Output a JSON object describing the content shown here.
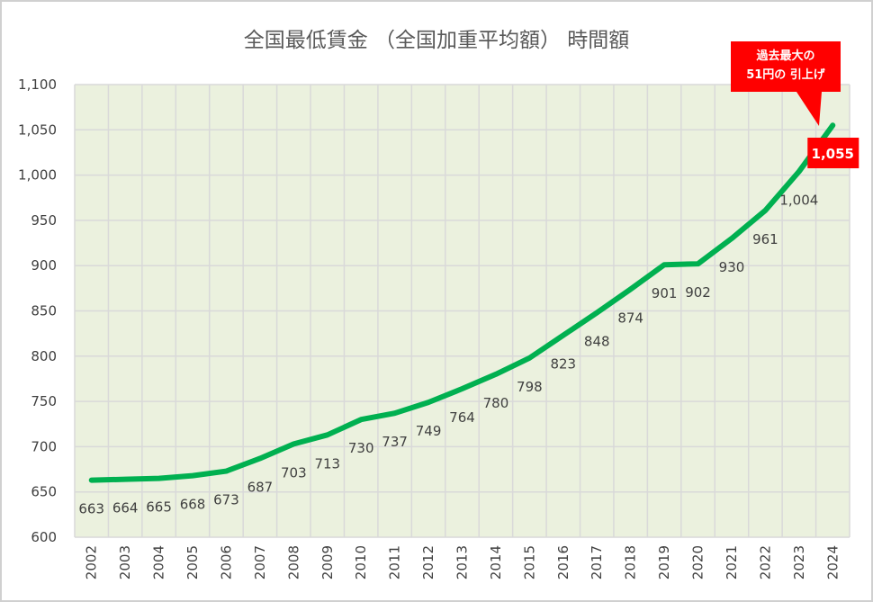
{
  "chart_data": {
    "type": "line",
    "title": "全国最低賃金 （全国加重平均額） 時間額",
    "categories": [
      "2002",
      "2003",
      "2004",
      "2005",
      "2006",
      "2007",
      "2008",
      "2009",
      "2010",
      "2011",
      "2012",
      "2013",
      "2014",
      "2015",
      "2016",
      "2017",
      "2018",
      "2019",
      "2020",
      "2021",
      "2022",
      "2023",
      "2024"
    ],
    "values": [
      663,
      664,
      665,
      668,
      673,
      687,
      703,
      713,
      730,
      737,
      749,
      764,
      780,
      798,
      823,
      848,
      874,
      901,
      902,
      930,
      961,
      1004,
      1055
    ],
    "data_labels": [
      "663",
      "664",
      "665",
      "668",
      "673",
      "687",
      "703",
      "713",
      "730",
      "737",
      "749",
      "764",
      "780",
      "798",
      "823",
      "848",
      "874",
      "901",
      "902",
      "930",
      "961",
      "1,004",
      "1,055"
    ],
    "ylim": [
      600,
      1100
    ],
    "yticks": [
      "600",
      "650",
      "700",
      "750",
      "800",
      "850",
      "900",
      "950",
      "1,000",
      "1,050",
      "1,100"
    ],
    "grid": true,
    "line_color": "#00b050",
    "plot_background": "#ebf1de",
    "highlight_color": "#ff0000",
    "annotation": {
      "line1": "過去最大の",
      "line2": "51円の 引上げ"
    }
  }
}
